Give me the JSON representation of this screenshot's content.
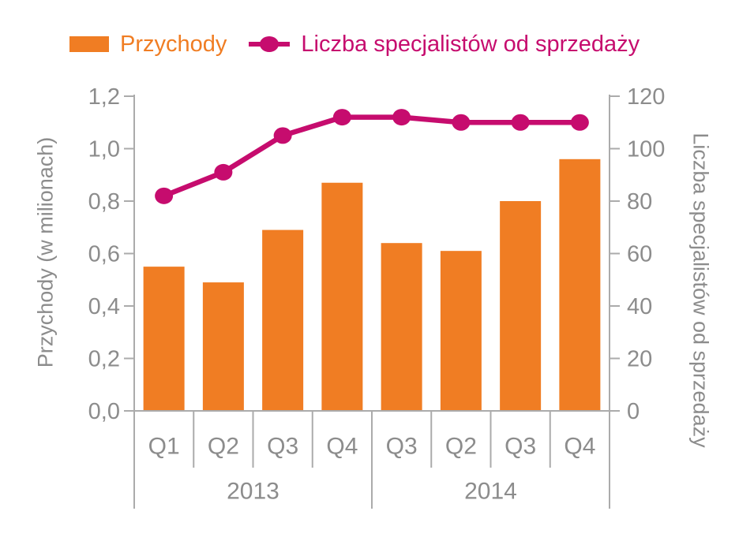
{
  "legend": {
    "bar_label": "Przychody",
    "line_label": "Liczba specjalistów od sprzedaży"
  },
  "colors": {
    "bar": "#F07D23",
    "line": "#C60C6E",
    "axis": "#ABABAB",
    "text": "#8C8C8C"
  },
  "chart_data": {
    "type": "bar",
    "subtype": "combo-bar-line-dual-axis",
    "categories": [
      "Q1",
      "Q2",
      "Q3",
      "Q4",
      "Q3",
      "Q2",
      "Q3",
      "Q4"
    ],
    "groups": [
      {
        "label": "2013",
        "from": 0,
        "to": 3
      },
      {
        "label": "2014",
        "from": 4,
        "to": 7
      }
    ],
    "series": [
      {
        "name": "Przychody",
        "type": "bar",
        "axis": "left",
        "values": [
          0.55,
          0.49,
          0.69,
          0.87,
          0.64,
          0.61,
          0.8,
          0.96
        ]
      },
      {
        "name": "Liczba specjalistów od sprzedaży",
        "type": "line",
        "axis": "right",
        "values": [
          82,
          91,
          105,
          112,
          112,
          110,
          110,
          110
        ]
      }
    ],
    "left_axis": {
      "title": "Przychody (w milionach)",
      "min": 0,
      "max": 1.2,
      "tick_values": [
        0,
        0.2,
        0.4,
        0.6,
        0.8,
        1.0,
        1.2
      ],
      "tick_labels": [
        "0,0",
        "0,2",
        "0,4",
        "0,6",
        "0,8",
        "1,0",
        "1,2"
      ]
    },
    "right_axis": {
      "title": "Liczba specjalistów od sprzedaży",
      "min": 0,
      "max": 120,
      "tick_values": [
        0,
        20,
        40,
        60,
        80,
        100,
        120
      ],
      "tick_labels": [
        "0",
        "20",
        "40",
        "60",
        "80",
        "100",
        "120"
      ]
    },
    "grid": false,
    "legend_position": "top"
  }
}
